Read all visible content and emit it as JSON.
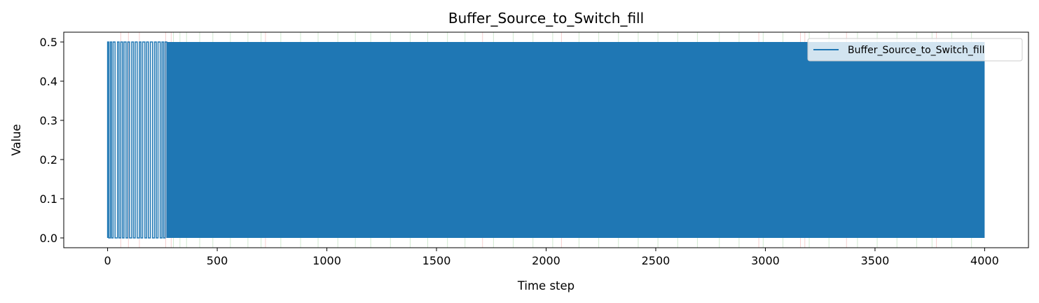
{
  "chart_data": {
    "type": "line",
    "title": "Buffer_Source_to_Switch_fill",
    "xlabel": "Time step",
    "ylabel": "Value",
    "xlim": [
      -200,
      4200
    ],
    "ylim": [
      -0.025,
      0.525
    ],
    "x_ticks": [
      0,
      500,
      1000,
      1500,
      2000,
      2500,
      3000,
      3500,
      4000
    ],
    "y_ticks": [
      0.0,
      0.1,
      0.2,
      0.3,
      0.4,
      0.5
    ],
    "x_tick_labels": [
      "0",
      "500",
      "1000",
      "1500",
      "2000",
      "2500",
      "3000",
      "3500",
      "4000"
    ],
    "y_tick_labels": [
      "0.0",
      "0.1",
      "0.2",
      "0.3",
      "0.4",
      "0.5"
    ],
    "legend_position": "top-right",
    "grid": false,
    "series": [
      {
        "name": "Buffer_Source_to_Switch_fill",
        "color": "#1f77b4",
        "x_range": [
          0,
          4000
        ],
        "value_levels": [
          0.0,
          0.5
        ],
        "pattern": "rapid oscillation between 0.0 and 0.5; sparse toggles before step ~270, dense afterwards",
        "sparse_toggle_steps": [
          0,
          5,
          12,
          18,
          25,
          34,
          45,
          52,
          60,
          68,
          75,
          84,
          92,
          100,
          110,
          118,
          126,
          135,
          145,
          152,
          160,
          170,
          178,
          186,
          195,
          205,
          214,
          222,
          230,
          240,
          248,
          255,
          262,
          270
        ],
        "dense_from": 270,
        "dense_to": 4000
      }
    ],
    "background_event_lines": {
      "green": [
        300,
        330,
        360,
        420,
        480,
        560,
        640,
        700,
        790,
        880,
        960,
        1050,
        1130,
        1200,
        1290,
        1380,
        1460,
        1550,
        1630,
        1760,
        1850,
        1940,
        2030,
        2150,
        2240,
        2330,
        2420,
        2510,
        2600,
        2690,
        2790,
        2880,
        2990,
        3080,
        3200,
        3290,
        3420,
        3510,
        3600,
        3690,
        3760,
        3850,
        3940
      ],
      "red": [
        60,
        95,
        145,
        265,
        290,
        720,
        1710,
        2070,
        2970,
        3160,
        3180,
        3370,
        3780
      ]
    }
  }
}
